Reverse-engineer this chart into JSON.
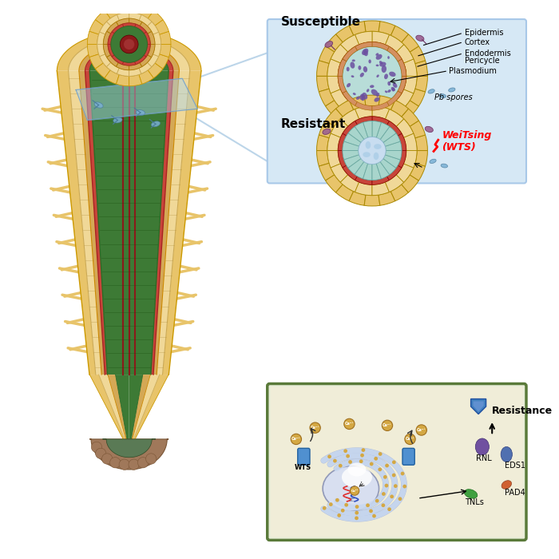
{
  "bg_color": "#ffffff",
  "blue_panel_color": "#d6e8f5",
  "blue_panel_border": "#a8c8e8",
  "green_panel_color": "#e8edd8",
  "green_panel_border": "#5a7a3a",
  "epidermis_color": "#e8c46a",
  "cortex_color": "#f0d898",
  "endodermis_color": "#c8453a",
  "pericycle_color": "#e8c46a",
  "stele_susceptible": "#b8ddd8",
  "stele_resistant": "#a8d5cc",
  "plasmodium_color": "#6b4fa0",
  "vascular_color": "#c8ddf0",
  "spore_color": "#7ab0d4",
  "wts_label": "WeiTsing\n(WTS)",
  "susceptible_label": "Susceptible",
  "resistant_label": "Resistant",
  "epidermis_label": "Epidermis",
  "cortex_label": "Cortex",
  "endodermis_label": "Endodermis",
  "pericycle_label": "Pericycle",
  "plasmodium_label": "Plasmodium",
  "pb_spores_label": "Pb spores",
  "resistance_label": "Resistance",
  "wts_short": "WTS",
  "rnl_label": "RNL",
  "eds1_label": "EDS1",
  "pad4_label": "PAD4",
  "tnls_label": "TNLs",
  "root_outer_color": "#e8c46a",
  "root_cortex_color": "#f0d898",
  "root_endodermis_color": "#d4aa70",
  "root_stele_color": "#4a8a3a",
  "root_vascular_color": "#8b2020",
  "root_cap_color": "#a0785a",
  "root_hair_color": "#e8c46a",
  "er_color": "#e8eef5",
  "nucleus_color": "#d0d8e8",
  "ca_color": "#d4a843",
  "arrow_color": "#333333",
  "rnl_color": "#7050a0",
  "rnl_ec": "#403070",
  "eds1_color": "#5070b0",
  "eds1_ec": "#304080",
  "pad4_color": "#d06030",
  "pad4_ec": "#904020",
  "tnls_color": "#40a040",
  "tnls_ec": "#207020"
}
